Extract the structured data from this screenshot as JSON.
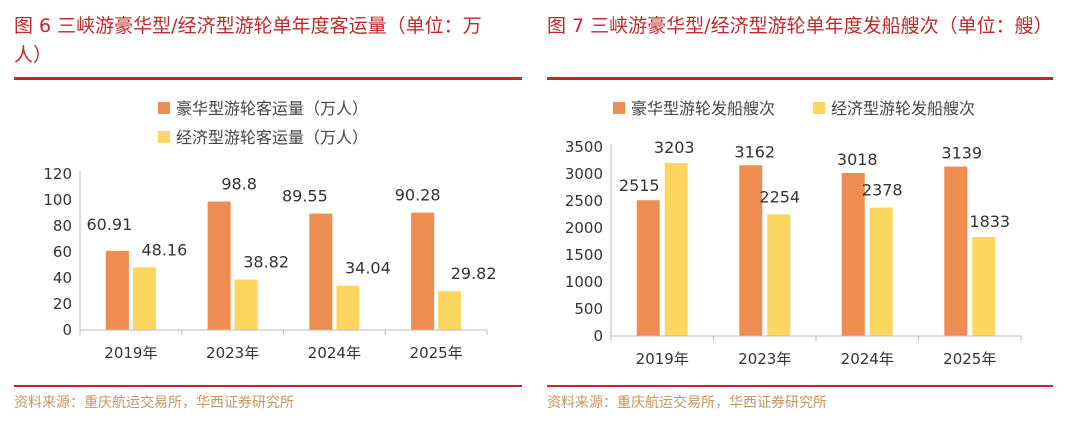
{
  "colors": {
    "accent": "#c0292b",
    "luxury": "#ee8d52",
    "economy": "#fdd65f",
    "source": "#c8955e"
  },
  "left": {
    "title": "图 6 三峡游豪华型/经济型游轮单年度客运量（单位：万人）",
    "source": "资料来源：重庆航运交易所，华西证券研究所",
    "chart_data": {
      "type": "bar",
      "title": "三峡游豪华型/经济型游轮单年度客运量",
      "xlabel": "",
      "ylabel": "",
      "categories": [
        "2019年",
        "2023年",
        "2024年",
        "2025年"
      ],
      "series": [
        {
          "name": "豪华型游轮客运量（万人）",
          "values": [
            60.91,
            98.8,
            89.55,
            90.28
          ],
          "labels": [
            "60.91",
            "98.8",
            "89.55",
            "90.28"
          ]
        },
        {
          "name": "经济型游轮客运量（万人）",
          "values": [
            48.16,
            38.82,
            34.04,
            29.82
          ],
          "labels": [
            "48.16",
            "38.82",
            "34.04",
            "29.82"
          ]
        }
      ],
      "yticks": [
        "0",
        "20",
        "40",
        "60",
        "80",
        "100",
        "120"
      ],
      "ylim": [
        0,
        120
      ],
      "legend": "top"
    }
  },
  "right": {
    "title": "图 7 三峡游豪华型/经济型游轮单年度发船艘次（单位：艘）",
    "source": "资料来源：重庆航运交易所，华西证券研究所",
    "chart_data": {
      "type": "bar",
      "title": "三峡游豪华型/经济型游轮单年度发船艘次",
      "xlabel": "",
      "ylabel": "",
      "categories": [
        "2019年",
        "2023年",
        "2024年",
        "2025年"
      ],
      "series": [
        {
          "name": "豪华型游轮发船艘次",
          "values": [
            2515,
            3162,
            3018,
            3139
          ],
          "labels": [
            "2515",
            "3162",
            "3018",
            "3139"
          ]
        },
        {
          "name": "经济型游轮发船艘次",
          "values": [
            3203,
            2254,
            2378,
            1833
          ],
          "labels": [
            "3203",
            "2254",
            "2378",
            "1833"
          ]
        }
      ],
      "yticks": [
        "0",
        "500",
        "1000",
        "1500",
        "2000",
        "2500",
        "3000",
        "3500"
      ],
      "ylim": [
        0,
        3500
      ],
      "legend": "top"
    }
  }
}
